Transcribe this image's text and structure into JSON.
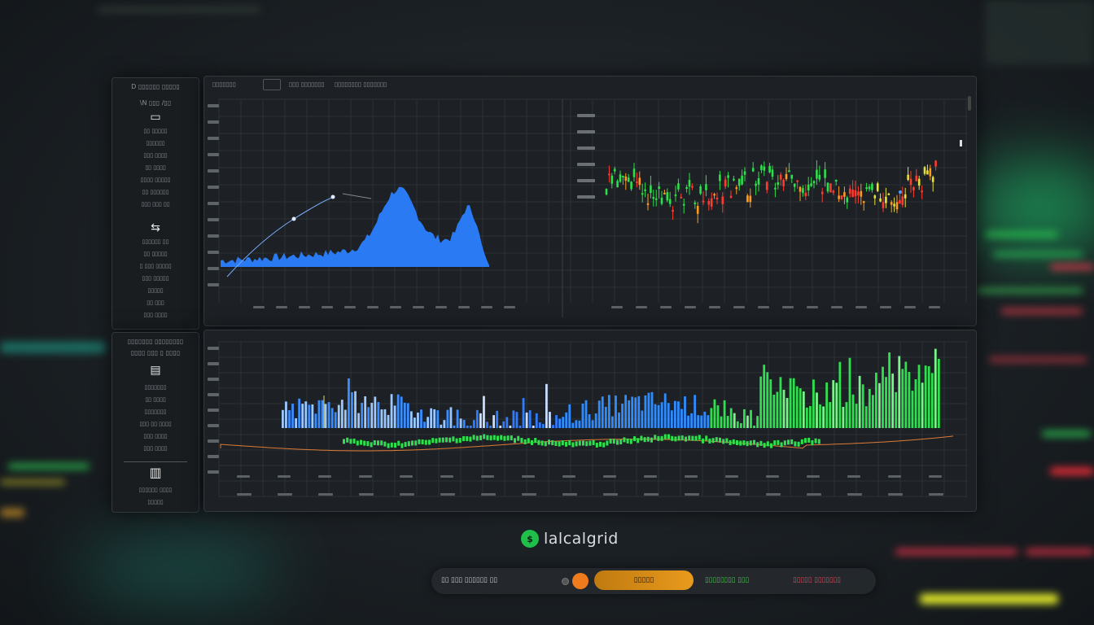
{
  "app": {
    "name": "lalcalgrid"
  },
  "sidebar_top": {
    "title": "D  ▯▯▯▯▯▯  ▯▯▯▯▯",
    "subtitle": "\\N ▯▯▯ /▯▯",
    "items": [
      "▯▯ ▯▯▯▯▯",
      "▯▯▯▯▯▯",
      "▯▯▯ ▯▯▯▯",
      "▯▯ ▯▯▯▯",
      "▯▯▯▯ ▯▯▯▯▯",
      "▯▯ ▯▯▯▯▯▯",
      "▯▯▯ ▯▯▯ ▯▯"
    ],
    "items2": [
      "▯▯▯▯▯▯ ▯▯",
      "▯▯ ▯▯▯▯▯",
      "▯ ▯▯▯ ▯▯▯▯▯",
      "▯▯▯ ▯▯▯▯▯",
      "▯▯▯▯▯",
      "▯▯ ▯▯▯",
      "▯▯▯ ▯▯▯▯"
    ]
  },
  "sidebar_bottom": {
    "title": "▯▯▯▯▯▯▯ ▯▯▯▯▯▯▯▯",
    "subtitle": "▯▯▯▯ ▯▯▯ ▯ ▯▯▯▯",
    "items": [
      "▯▯▯▯▯▯▯",
      "▯▯ ▯▯▯▯",
      "▯▯▯▯▯▯▯",
      "▯▯▯ ▯▯ ▯▯▯▯",
      "▯▯▯ ▯▯▯▯",
      "▯▯▯ ▯▯▯▯"
    ],
    "footer": [
      "▯▯▯▯▯▯ ▯▯▯▯",
      "▯▯▯▯▯"
    ]
  },
  "top_panel": {
    "tabs": [
      "▯▯▯▯▯▯▯",
      "▯▯▯ ▯▯▯▯▯▯▯",
      "▯▯▯▯▯▯▯▯ ▯▯▯▯▯▯▯"
    ]
  },
  "status_bar": {
    "left_text": "▯▯ ▯▯▯ ▯▯▯▯▯▯ ▯▯",
    "pill_label": "▯▯▯▯▯",
    "mid_text": "▯▯▯▯▯▯▯▯ ▯▯▯",
    "right_text": "▯▯▯▯▯ ▯▯▯▯▯▯▯",
    "colors": {
      "pill": "#e89a1c",
      "mid": "#46c84a",
      "right": "#e04a5a"
    }
  },
  "colors": {
    "accent_blue": "#2b7fff",
    "up_green": "#2ee04a",
    "down_red": "#ff3b2f",
    "bg": "#1d2125"
  }
}
